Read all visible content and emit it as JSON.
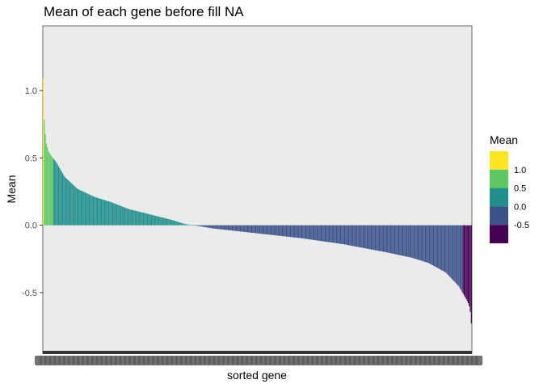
{
  "chart_data": {
    "type": "bar",
    "title": "Mean of each gene before fill NA",
    "xlabel": "sorted gene",
    "ylabel": "Mean",
    "ylim": [
      -0.95,
      1.48
    ],
    "y_ticks": [
      {
        "value": 1.0,
        "label": "1.0"
      },
      {
        "value": 0.5,
        "label": "0.5"
      },
      {
        "value": 0.0,
        "label": "0.0"
      },
      {
        "value": -0.5,
        "label": "-0.5"
      }
    ],
    "x_tick_labels": "dense overlapping gene labels (illegible)",
    "n_genes": 420,
    "sorted": "descending",
    "value_profile": [
      [
        0.0,
        1.09
      ],
      [
        0.002,
        0.8
      ],
      [
        0.006,
        0.62
      ],
      [
        0.012,
        0.55
      ],
      [
        0.02,
        0.51
      ],
      [
        0.03,
        0.47
      ],
      [
        0.05,
        0.36
      ],
      [
        0.08,
        0.27
      ],
      [
        0.12,
        0.21
      ],
      [
        0.16,
        0.17
      ],
      [
        0.2,
        0.12
      ],
      [
        0.25,
        0.08
      ],
      [
        0.3,
        0.04
      ],
      [
        0.33,
        0.01
      ],
      [
        0.36,
        -0.005
      ],
      [
        0.4,
        -0.025
      ],
      [
        0.5,
        -0.06
      ],
      [
        0.6,
        -0.095
      ],
      [
        0.7,
        -0.14
      ],
      [
        0.8,
        -0.2
      ],
      [
        0.86,
        -0.24
      ],
      [
        0.9,
        -0.28
      ],
      [
        0.94,
        -0.35
      ],
      [
        0.97,
        -0.45
      ],
      [
        0.985,
        -0.53
      ],
      [
        0.993,
        -0.58
      ],
      [
        0.997,
        -0.62
      ],
      [
        1.0,
        -0.73
      ]
    ],
    "color_legend": {
      "title": "Mean",
      "labels": [
        "1.0",
        "0.5",
        "0.0",
        "-0.5"
      ],
      "bins": [
        {
          "min": 1.0,
          "color": "#FDE725"
        },
        {
          "min": 0.5,
          "color": "#5EC962"
        },
        {
          "min": 0.0,
          "color": "#21908D"
        },
        {
          "min": -0.5,
          "color": "#3B528B"
        },
        {
          "min": -99,
          "color": "#440154"
        }
      ]
    },
    "panel_background": "#EBEBEB",
    "panel_border": "#808080",
    "grid": false,
    "legend_position": "right"
  }
}
